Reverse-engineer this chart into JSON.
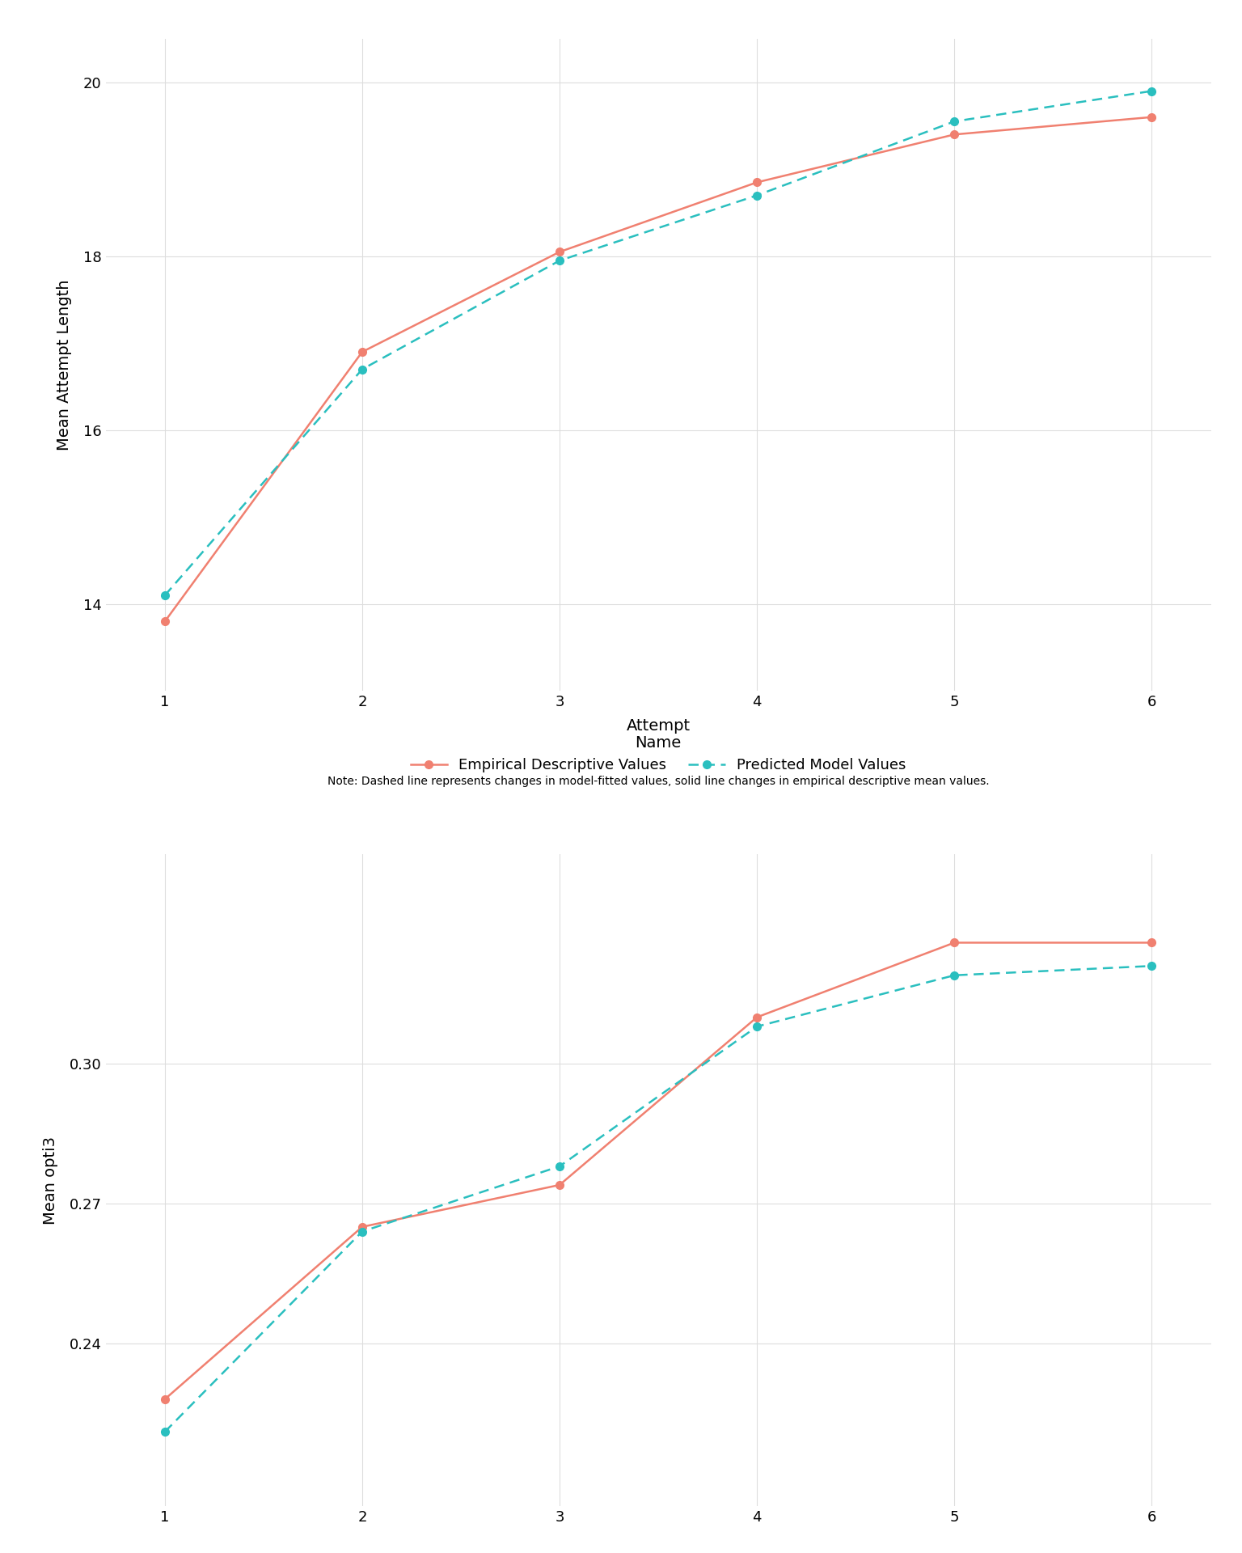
{
  "attempts": [
    1,
    2,
    3,
    4,
    5,
    6
  ],
  "plot1": {
    "ylabel": "Mean Attempt Length",
    "xlabel": "Attempt",
    "empirical": [
      13.8,
      16.9,
      18.05,
      18.85,
      19.4,
      19.6
    ],
    "predicted": [
      14.1,
      16.7,
      17.95,
      18.7,
      19.55,
      19.9
    ],
    "yticks": [
      14,
      16,
      18,
      20
    ],
    "ylim": [
      13.0,
      20.5
    ]
  },
  "plot2": {
    "ylabel": "Mean opti3",
    "empirical": [
      0.228,
      0.265,
      0.274,
      0.31,
      0.326,
      0.326
    ],
    "predicted": [
      0.221,
      0.264,
      0.278,
      0.308,
      0.319,
      0.321
    ],
    "yticks": [
      0.24,
      0.27,
      0.3
    ],
    "ylim": [
      0.205,
      0.345
    ]
  },
  "empirical_color": "#F08070",
  "predicted_color": "#2ABFBF",
  "empirical_label": "Empirical Descriptive Values",
  "predicted_label": "Predicted Model Values",
  "note": "Note: Dashed line represents changes in model-fitted values, solid line changes in empirical descriptive mean values.",
  "background_color": "#FFFFFF",
  "grid_color": "#DDDDDD",
  "marker_size": 7,
  "linewidth": 1.8
}
